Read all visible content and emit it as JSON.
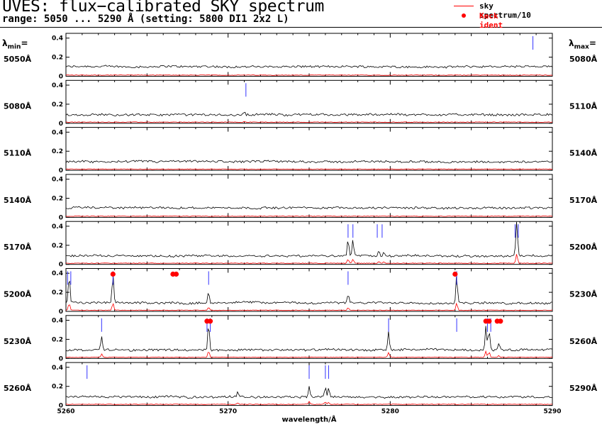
{
  "title": "UVES: flux−calibrated SKY spectrum",
  "subtitle": "range: 5050 ... 5290 Å (setting: 5800 DI1 2x2 L)",
  "legend": {
    "sky_label": "sky spectrum/10",
    "ident_label": "Keck ident"
  },
  "side_headers": {
    "lmin": "min",
    "lmax": "max"
  },
  "colors": {
    "sky": "#ff0000",
    "spectrum": "#000000",
    "marker": "#3333ff",
    "ident": "#ff0000"
  },
  "chart_data": {
    "type": "line",
    "xlabel": "wavelength/Å",
    "ylim": [
      0,
      0.45
    ],
    "yticks": [
      "0",
      "0.2",
      "0.4"
    ],
    "xticks": [
      "5260",
      "5270",
      "5280",
      "5290"
    ],
    "panels": [
      {
        "lmin": "5050Å",
        "lmax": "5080Å",
        "start": 5050,
        "baseline": 0.1,
        "lines": [],
        "markers": [
          5078.8
        ],
        "idents": []
      },
      {
        "lmin": "5080Å",
        "lmax": "5110Å",
        "start": 5080,
        "baseline": 0.09,
        "lines": [
          {
            "x": 5091.0,
            "h": 0.03
          }
        ],
        "markers": [
          5091.1
        ],
        "idents": []
      },
      {
        "lmin": "5110Å",
        "lmax": "5140Å",
        "start": 5110,
        "baseline": 0.09,
        "lines": [],
        "markers": [],
        "idents": []
      },
      {
        "lmin": "5140Å",
        "lmax": "5170Å",
        "start": 5140,
        "baseline": 0.1,
        "lines": [],
        "markers": [],
        "idents": []
      },
      {
        "lmin": "5170Å",
        "lmax": "5200Å",
        "start": 5170,
        "baseline": 0.09,
        "lines": [
          {
            "x": 5187.4,
            "h": 0.17
          },
          {
            "x": 5187.7,
            "h": 0.17
          },
          {
            "x": 5189.3,
            "h": 0.06
          },
          {
            "x": 5189.6,
            "h": 0.05
          },
          {
            "x": 5197.8,
            "h": 0.4
          }
        ],
        "markers": [
          5187.4,
          5187.7,
          5189.2,
          5189.5,
          5197.7,
          5197.9
        ],
        "idents": []
      },
      {
        "lmin": "5200Å",
        "lmax": "5230Å",
        "start": 5200,
        "baseline": 0.09,
        "lines": [
          {
            "x": 5200.2,
            "h": 0.3
          },
          {
            "x": 5202.9,
            "h": 0.3
          },
          {
            "x": 5208.8,
            "h": 0.12
          },
          {
            "x": 5217.4,
            "h": 0.1
          },
          {
            "x": 5224.1,
            "h": 0.3
          }
        ],
        "markers": [
          5200.1,
          5200.3,
          5202.9,
          5208.8,
          5217.4,
          5224.1
        ],
        "idents": [
          5202.9,
          5206.6,
          5206.8,
          5224.0
        ]
      },
      {
        "lmin": "5230Å",
        "lmax": "5260Å",
        "start": 5230,
        "baseline": 0.09,
        "lines": [
          {
            "x": 5232.2,
            "h": 0.13
          },
          {
            "x": 5238.8,
            "h": 0.28
          },
          {
            "x": 5249.9,
            "h": 0.2
          },
          {
            "x": 5255.9,
            "h": 0.26
          },
          {
            "x": 5256.1,
            "h": 0.22
          },
          {
            "x": 5256.7,
            "h": 0.08
          }
        ],
        "markers": [
          5232.2,
          5238.7,
          5238.9,
          5249.9,
          5254.1,
          5256.0,
          5256.2
        ],
        "idents": [
          5238.7,
          5238.9,
          5255.9,
          5256.1,
          5256.6,
          5256.8
        ]
      },
      {
        "lmin": "5260Å",
        "lmax": "5290Å",
        "start": 5260,
        "baseline": 0.09,
        "lines": [
          {
            "x": 5270.6,
            "h": 0.06
          },
          {
            "x": 5275.0,
            "h": 0.12
          },
          {
            "x": 5276.0,
            "h": 0.1
          },
          {
            "x": 5276.2,
            "h": 0.09
          }
        ],
        "markers": [
          5261.3,
          5275.0,
          5276.0,
          5276.2
        ],
        "idents": []
      }
    ]
  }
}
